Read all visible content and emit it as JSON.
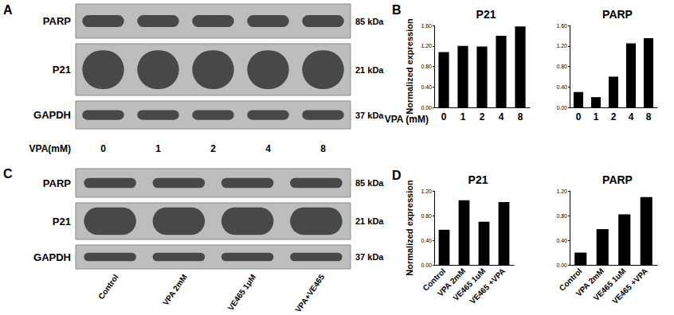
{
  "chart_data": [
    {
      "type": "bar",
      "annotations": [
        "B"
      ],
      "title": "P21",
      "y_label": "Normalized expression",
      "x_label": "VPA (mM)",
      "categories": [
        "0",
        "1",
        "2",
        "4",
        "8"
      ],
      "values": [
        1.08,
        1.2,
        1.19,
        1.4,
        1.58
      ],
      "color": "#000000",
      "ylim": [
        0,
        1.6
      ],
      "yticks": [
        {
          "value": 0,
          "label": "0.00"
        },
        {
          "value": 0.4,
          "label": "0.40"
        },
        {
          "value": 0.8,
          "label": "0.80"
        },
        {
          "value": 1.2,
          "label": "1.20"
        },
        {
          "value": 1.6,
          "label": "1.60"
        }
      ],
      "grid": false
    },
    {
      "type": "bar",
      "title": "PARP",
      "categories": [
        "0",
        "1",
        "2",
        "4",
        "8"
      ],
      "values": [
        0.3,
        0.2,
        0.6,
        1.25,
        1.35
      ],
      "color": "#000000",
      "ylim": [
        0,
        1.6
      ],
      "yticks": [
        {
          "value": 0,
          "label": "0.00"
        },
        {
          "value": 0.4,
          "label": "0.40"
        },
        {
          "value": 0.8,
          "label": "0.80"
        },
        {
          "value": 1.2,
          "label": "1.20"
        },
        {
          "value": 1.6,
          "label": "1.60"
        }
      ],
      "grid": false
    },
    {
      "type": "bar",
      "annotations": [
        "D"
      ],
      "title": "P21",
      "y_label": "Normalized expression",
      "categories": [
        "Control",
        "VPA 2mM",
        "VE465 1uM",
        "VE465 +VPA"
      ],
      "values": [
        0.57,
        1.05,
        0.7,
        1.02
      ],
      "color": "#000000",
      "ylim": [
        0,
        1.2
      ],
      "yticks": [
        {
          "value": 0,
          "label": "0.00"
        },
        {
          "value": 0.4,
          "label": "0.40"
        },
        {
          "value": 0.8,
          "label": "0.80"
        },
        {
          "value": 1.2,
          "label": "1.20"
        }
      ],
      "grid": false
    },
    {
      "type": "bar",
      "title": "PARP",
      "categories": [
        "Control",
        "VPA 2mM",
        "VE465 1uM",
        "VE465 +VPA"
      ],
      "values": [
        0.2,
        0.58,
        0.82,
        1.1
      ],
      "color": "#000000",
      "ylim": [
        0,
        1.2
      ],
      "yticks": [
        {
          "value": 0,
          "label": "0.00"
        },
        {
          "value": 0.4,
          "label": "0.40"
        },
        {
          "value": 0.8,
          "label": "0.80"
        },
        {
          "value": 1.2,
          "label": "1.20"
        }
      ],
      "grid": false
    }
  ],
  "blots": [
    {
      "annotations": [
        "A"
      ],
      "rows": [
        {
          "label": "PARP",
          "size": "85 kDa"
        },
        {
          "label": "P21",
          "size": "21 kDa"
        },
        {
          "label": "GAPDH",
          "size": "37 kDa"
        }
      ],
      "lane_title": "VPA(mM)",
      "lanes": [
        "0",
        "1",
        "2",
        "4",
        "8"
      ]
    },
    {
      "annotations": [
        "C"
      ],
      "rows": [
        {
          "label": "PARP",
          "size": "85 kDa"
        },
        {
          "label": "P21",
          "size": "21 kDa"
        },
        {
          "label": "GAPDH",
          "size": "37 kDa"
        }
      ],
      "lanes": [
        "Control",
        "VPA 2mM",
        "VE465 1μM",
        "VPA+VE465"
      ]
    }
  ]
}
